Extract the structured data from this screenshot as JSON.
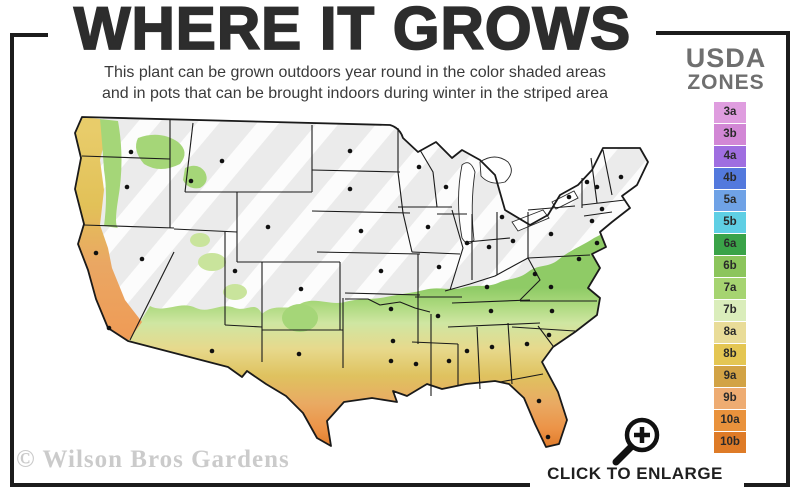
{
  "header": {
    "title": "WHERE IT GROWS",
    "subtitle_line1": "This plant can be grown outdoors year round in the color shaded areas",
    "subtitle_line2": "and in pots that can be brought indoors during winter in the striped area"
  },
  "legend": {
    "title_line1": "USDA",
    "title_line2": "ZONES",
    "zones": [
      {
        "label": "3a",
        "color": "#df9ddf"
      },
      {
        "label": "3b",
        "color": "#d287d5"
      },
      {
        "label": "4a",
        "color": "#9f6ee0"
      },
      {
        "label": "4b",
        "color": "#5379dd"
      },
      {
        "label": "5a",
        "color": "#6fa2e6"
      },
      {
        "label": "5b",
        "color": "#5fcfe4"
      },
      {
        "label": "6a",
        "color": "#3aa348"
      },
      {
        "label": "6b",
        "color": "#8cc55c"
      },
      {
        "label": "7a",
        "color": "#a6d471"
      },
      {
        "label": "7b",
        "color": "#daedbb"
      },
      {
        "label": "8a",
        "color": "#e9dc98"
      },
      {
        "label": "8b",
        "color": "#e4c653"
      },
      {
        "label": "9a",
        "color": "#d2a345"
      },
      {
        "label": "9b",
        "color": "#eeac72"
      },
      {
        "label": "10a",
        "color": "#e9923c"
      },
      {
        "label": "10b",
        "color": "#de7b27"
      }
    ]
  },
  "map": {
    "name": "us-hardiness-zone-map",
    "base_gray": "#ebebeb",
    "outline_color": "#1a1a1a"
  },
  "footer": {
    "watermark": "© Wilson Bros Gardens",
    "enlarge_label": "CLICK TO ENLARGE"
  }
}
